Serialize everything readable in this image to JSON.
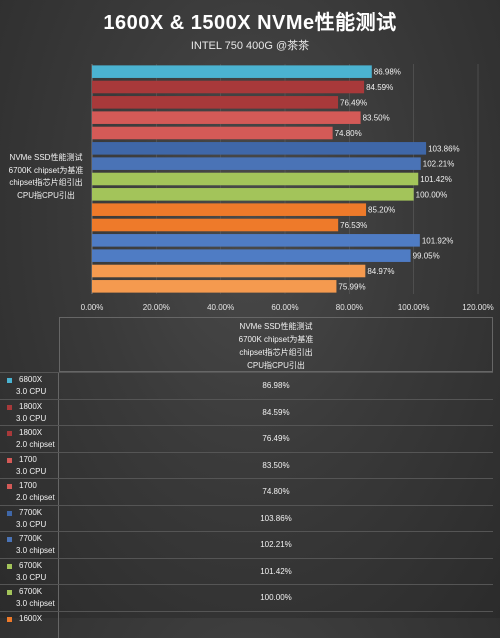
{
  "title": "1600X & 1500X NVMe性能测试",
  "subtitle": "INTEL 750 400G @茶茶",
  "category_label": [
    "NVMe SSD性能测试",
    "6700K chipset为基准",
    "chipset指芯片组引出",
    "CPU指CPU引出"
  ],
  "chart_data": {
    "type": "bar",
    "orientation": "horizontal",
    "title": "1600X & 1500X NVMe性能测试",
    "subtitle": "INTEL 750 400G @茶茶",
    "categories": [
      "NVMe SSD性能测试 6700K chipset为基准 chipset指芯片组引出 CPU指CPU引出"
    ],
    "xlim": [
      0,
      120
    ],
    "x_ticks": [
      "0.00%",
      "20.00%",
      "40.00%",
      "60.00%",
      "80.00%",
      "100.00%",
      "120.00%"
    ],
    "grid": true,
    "series": [
      {
        "name": "6800X 3.0 CPU",
        "value": 86.98,
        "label": "86.98%",
        "color": "#4bb3d1"
      },
      {
        "name": "1800X 3.0 CPU",
        "value": 84.59,
        "label": "84.59%",
        "color": "#a8393a"
      },
      {
        "name": "1800X 2.0 chipset",
        "value": 76.49,
        "label": "76.49%",
        "color": "#a8393a"
      },
      {
        "name": "1700 3.0 CPU",
        "value": 83.5,
        "label": "83.50%",
        "color": "#d45a57"
      },
      {
        "name": "1700 2.0 chipset",
        "value": 74.8,
        "label": "74.80%",
        "color": "#d45a57"
      },
      {
        "name": "7700K 3.0 CPU",
        "value": 103.86,
        "label": "103.86%",
        "color": "#3f67a8"
      },
      {
        "name": "7700K 3.0 chipset",
        "value": 102.21,
        "label": "102.21%",
        "color": "#4a73b6"
      },
      {
        "name": "6700K 3.0 CPU",
        "value": 101.42,
        "label": "101.42%",
        "color": "#a3c45a"
      },
      {
        "name": "6700K 3.0 chipset",
        "value": 100.0,
        "label": "100.00%",
        "color": "#a3c45a"
      },
      {
        "name": "1600X",
        "value": 85.2,
        "label": "85.20%",
        "color": "#ee7a2a"
      },
      {
        "name": "",
        "value": 76.53,
        "label": "76.53%",
        "color": "#ee7a2a"
      },
      {
        "name": "",
        "value": 101.92,
        "label": "101.92%",
        "color": "#4f7cc4"
      },
      {
        "name": "",
        "value": 99.05,
        "label": "99.05%",
        "color": "#4f7cc4"
      },
      {
        "name": "",
        "value": 84.97,
        "label": "84.97%",
        "color": "#f59a4f"
      },
      {
        "name": "",
        "value": 75.99,
        "label": "75.99%",
        "color": "#f59a4f"
      }
    ]
  },
  "table": {
    "header": [
      "NVMe SSD性能测试",
      "6700K chipset为基准",
      "chipset指芯片组引出",
      "CPU指CPU引出"
    ],
    "rows": [
      {
        "line1": "6800X",
        "line2": "3.0 CPU",
        "value": "86.98%",
        "color": "#4bb3d1"
      },
      {
        "line1": "1800X",
        "line2": "3.0 CPU",
        "value": "84.59%",
        "color": "#a8393a"
      },
      {
        "line1": "1800X",
        "line2": "2.0 chipset",
        "value": "76.49%",
        "color": "#a8393a"
      },
      {
        "line1": "1700",
        "line2": "3.0 CPU",
        "value": "83.50%",
        "color": "#d45a57"
      },
      {
        "line1": "1700",
        "line2": "2.0 chipset",
        "value": "74.80%",
        "color": "#d45a57"
      },
      {
        "line1": "7700K",
        "line2": "3.0 CPU",
        "value": "103.86%",
        "color": "#3f67a8"
      },
      {
        "line1": "7700K",
        "line2": "3.0 chipset",
        "value": "102.21%",
        "color": "#4a73b6"
      },
      {
        "line1": "6700K",
        "line2": "3.0 CPU",
        "value": "101.42%",
        "color": "#a3c45a"
      },
      {
        "line1": "6700K",
        "line2": "3.0 chipset",
        "value": "100.00%",
        "color": "#a3c45a"
      },
      {
        "line1": "1600X",
        "line2": "",
        "value": "",
        "color": "#ee7a2a"
      }
    ]
  }
}
